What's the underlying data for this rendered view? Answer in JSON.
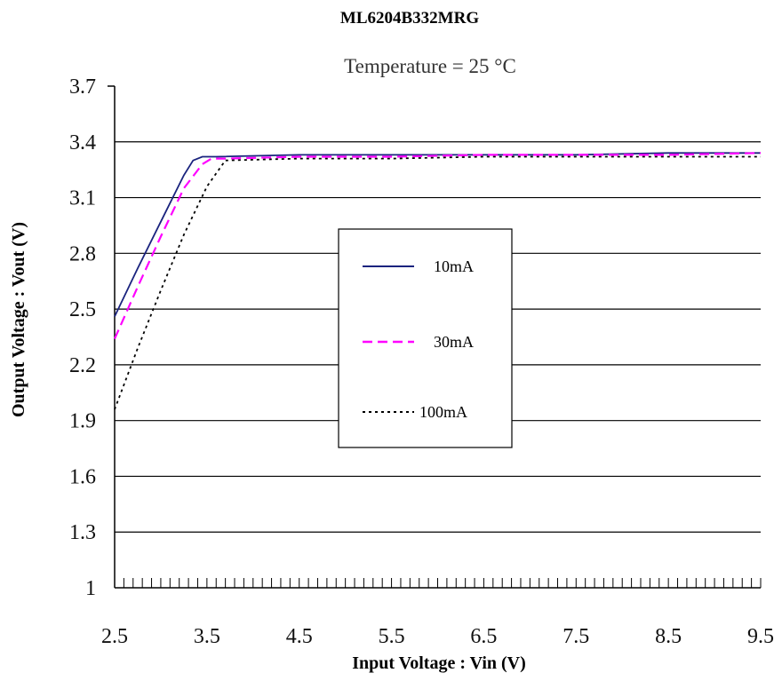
{
  "chart_data": {
    "type": "line",
    "title": "ML6204B332MRG",
    "subtitle": "Temperature = 25 °C",
    "xlabel": "Input  Voltage : Vin (V)",
    "ylabel": "Output Voltage : Vout (V)",
    "xlim": [
      2.5,
      9.5
    ],
    "ylim": [
      1,
      3.7
    ],
    "x_ticks": [
      "2.5",
      "3.5",
      "4.5",
      "5.5",
      "6.5",
      "7.5",
      "8.5",
      "9.5"
    ],
    "y_ticks": [
      "1",
      "1.3",
      "1.6",
      "1.9",
      "2.2",
      "2.5",
      "2.8",
      "3.1",
      "3.4",
      "3.7"
    ],
    "grid": "horizontal",
    "legend_position": "center",
    "series": [
      {
        "name": "10mA",
        "color": "#1a237e",
        "style": "solid",
        "x": [
          2.5,
          2.75,
          3.0,
          3.25,
          3.35,
          3.45,
          3.6,
          4.5,
          5.5,
          6.5,
          7.5,
          8.5,
          9.5
        ],
        "y": [
          2.46,
          2.72,
          2.97,
          3.22,
          3.3,
          3.32,
          3.32,
          3.33,
          3.33,
          3.33,
          3.33,
          3.34,
          3.34
        ]
      },
      {
        "name": "30mA",
        "color": "#ff00ff",
        "style": "dashed",
        "x": [
          2.5,
          2.75,
          3.0,
          3.25,
          3.45,
          3.55,
          3.7,
          4.5,
          5.5,
          6.5,
          7.5,
          8.5,
          9.5
        ],
        "y": [
          2.34,
          2.62,
          2.89,
          3.15,
          3.28,
          3.31,
          3.31,
          3.32,
          3.32,
          3.33,
          3.33,
          3.33,
          3.34
        ]
      },
      {
        "name": "100mA",
        "color": "#000000",
        "style": "dotted",
        "x": [
          2.5,
          2.75,
          3.0,
          3.25,
          3.5,
          3.7,
          4.5,
          5.5,
          6.5,
          7.5,
          8.5,
          9.5
        ],
        "y": [
          1.96,
          2.29,
          2.6,
          2.9,
          3.16,
          3.3,
          3.31,
          3.31,
          3.32,
          3.32,
          3.32,
          3.32
        ]
      }
    ]
  }
}
